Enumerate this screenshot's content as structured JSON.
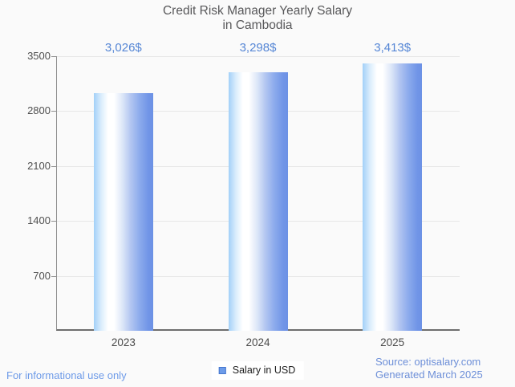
{
  "title": {
    "line1": "Credit Risk Manager Yearly Salary",
    "line2": "in Cambodia"
  },
  "chart_data": {
    "type": "bar",
    "title": "Credit Risk Manager Yearly Salary in Cambodia",
    "categories": [
      "2023",
      "2024",
      "2025"
    ],
    "values": [
      3026,
      3298,
      3413
    ],
    "value_labels": [
      "3,026$",
      "3,298$",
      "3,413$"
    ],
    "series_name": "Salary in USD",
    "xlabel": "",
    "ylabel": "",
    "ylim": [
      0,
      3500
    ],
    "yticks": [
      3500,
      2800,
      2100,
      1400,
      700
    ],
    "grid": "horizontal",
    "legend_position": "bottom-center",
    "colors": {
      "bar_gradient_left": "#a2d0f8",
      "bar_gradient_middle": "#ffffff",
      "bar_gradient_right": "#6c91e5",
      "value_label": "#5586d5",
      "axis_text": "#4f4f4f",
      "background": "#fafafa"
    }
  },
  "legend": {
    "label": "Salary in USD",
    "marker_fill": "#6d9ce9",
    "marker_border": "#4677cf"
  },
  "footer": {
    "disclaimer": "For informational use only",
    "source_line1": "Source: optisalary.com",
    "source_line2": "Generated March 2025"
  }
}
